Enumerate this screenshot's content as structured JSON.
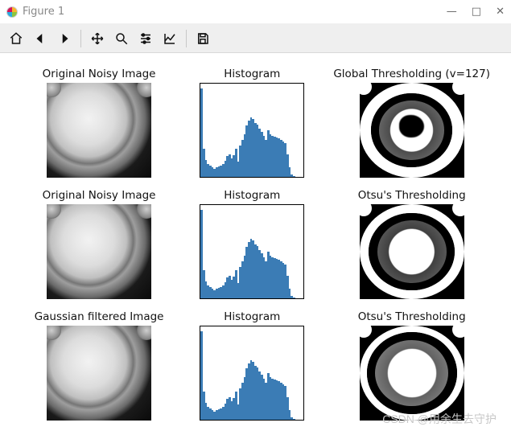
{
  "window": {
    "title": "Figure 1",
    "controls": {
      "min": "—",
      "max": "□",
      "close": "✕"
    }
  },
  "toolbar": {
    "items": [
      {
        "name": "home-icon"
      },
      {
        "name": "back-icon"
      },
      {
        "name": "forward-icon"
      },
      {
        "sep": true
      },
      {
        "name": "pan-icon"
      },
      {
        "name": "zoom-icon"
      },
      {
        "name": "configure-icon"
      },
      {
        "name": "axes-icon"
      },
      {
        "sep": true
      },
      {
        "name": "save-icon"
      }
    ]
  },
  "grid": {
    "rows": [
      {
        "cells": [
          {
            "title": "Original Noisy Image",
            "kind": "gray"
          },
          {
            "title": "Histogram",
            "kind": "hist"
          },
          {
            "title": "Global Thresholding (v=127)",
            "kind": "thresh-global"
          }
        ]
      },
      {
        "cells": [
          {
            "title": "Original Noisy Image",
            "kind": "gray"
          },
          {
            "title": "Histogram",
            "kind": "hist"
          },
          {
            "title": "Otsu's Thresholding",
            "kind": "thresh-otsu"
          }
        ]
      },
      {
        "cells": [
          {
            "title": "Gaussian filtered Image",
            "kind": "gray"
          },
          {
            "title": "Histogram",
            "kind": "hist"
          },
          {
            "title": "Otsu's Thresholding",
            "kind": "thresh-otsu2"
          }
        ]
      }
    ]
  },
  "histogram": {
    "type": "histogram",
    "color": "#3b7cb5",
    "background_color": "#ffffff",
    "border_color": "#000000",
    "xlim": [
      0,
      255
    ],
    "ylim": [
      0,
      1
    ],
    "values": [
      0.95,
      0.3,
      0.18,
      0.14,
      0.12,
      0.1,
      0.09,
      0.1,
      0.11,
      0.12,
      0.14,
      0.17,
      0.22,
      0.24,
      0.2,
      0.23,
      0.3,
      0.16,
      0.34,
      0.4,
      0.46,
      0.55,
      0.6,
      0.64,
      0.62,
      0.58,
      0.56,
      0.52,
      0.48,
      0.44,
      0.4,
      0.5,
      0.46,
      0.44,
      0.43,
      0.42,
      0.41,
      0.4,
      0.38,
      0.36,
      0.24,
      0.1,
      0.03,
      0.01,
      0.0,
      0.0,
      0.0,
      0.0
    ]
  },
  "thresholds": {
    "global": {
      "background_color": "#000000",
      "fill_color": "#ffffff",
      "outer_diameter_pct": 100,
      "inner_diameter_pct": 62,
      "center_blob_pct": 24,
      "has_center_blob": true,
      "ring_noise": 0.2
    },
    "otsu": {
      "background_color": "#000000",
      "fill_color": "#ffffff",
      "outer_diameter_pct": 100,
      "inner_diameter_pct": 66,
      "has_center_blob": false,
      "ring_noise": 0.25
    },
    "otsu2": {
      "background_color": "#000000",
      "fill_color": "#ffffff",
      "outer_diameter_pct": 100,
      "inner_diameter_pct": 70,
      "has_center_blob": false,
      "ring_noise": 0.12
    }
  },
  "watermark": "CSDN @用余生去守护"
}
